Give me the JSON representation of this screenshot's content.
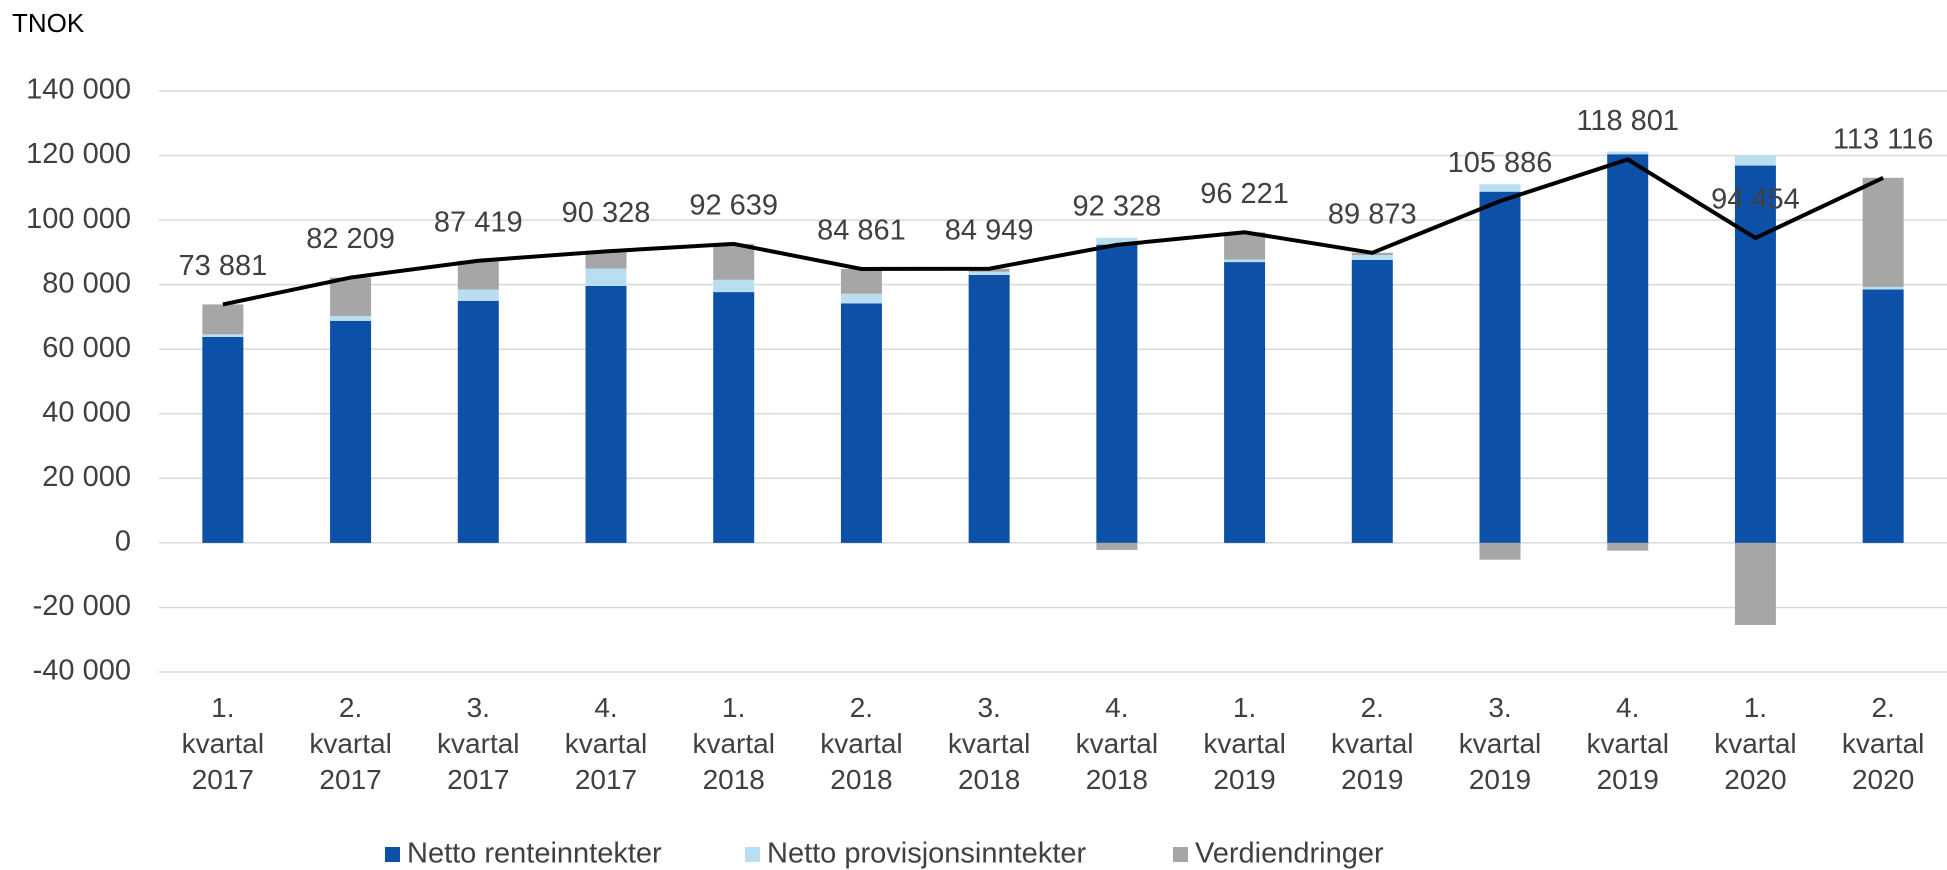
{
  "chart_data": {
    "type": "bar",
    "stacked": true,
    "y_unit_label": "TNOK",
    "categories": [
      "1. kvartal 2017",
      "2. kvartal 2017",
      "3. kvartal 2017",
      "4. kvartal 2017",
      "1. kvartal 2018",
      "2. kvartal 2018",
      "3. kvartal 2018",
      "4. kvartal 2018",
      "1. kvartal 2019",
      "2. kvartal 2019",
      "3. kvartal 2019",
      "4. kvartal 2019",
      "1. kvartal 2020",
      "2. kvartal 2020"
    ],
    "series": [
      {
        "name": "Netto renteinntekter",
        "color": "#0d50a8",
        "values": [
          63800,
          68800,
          75000,
          79600,
          77700,
          74200,
          83000,
          92400,
          87000,
          87700,
          108800,
          120400,
          116900,
          78500
        ]
      },
      {
        "name": "Netto provisjonsinntekter",
        "color": "#b9def2",
        "values": [
          800,
          1500,
          3500,
          5400,
          3800,
          3000,
          1000,
          2100,
          800,
          1500,
          2300,
          800,
          3000,
          800
        ]
      },
      {
        "name": "Verdiendringer",
        "color": "#a6a6a6",
        "values": [
          9281,
          11909,
          8919,
          5328,
          11139,
          7661,
          949,
          -2172,
          8421,
          673,
          -5214,
          -2399,
          -25446,
          33816
        ]
      }
    ],
    "line": {
      "color": "#000000",
      "values": [
        73881,
        82209,
        87419,
        90328,
        92639,
        84861,
        84949,
        92328,
        96221,
        89873,
        105886,
        118801,
        94454,
        113116
      ],
      "value_labels": [
        "73 881",
        "82 209",
        "87 419",
        "90 328",
        "92 639",
        "84 861",
        "84 949",
        "92 328",
        "96 221",
        "89 873",
        "105 886",
        "118 801",
        "94 454",
        "113 116"
      ]
    },
    "ylim": [
      -40000,
      140000
    ],
    "yticks": [
      {
        "value": -40000,
        "label": "-40 000"
      },
      {
        "value": -20000,
        "label": "-20 000"
      },
      0,
      {
        "value": 20000,
        "label": "20 000"
      },
      {
        "value": 40000,
        "label": "40 000"
      },
      {
        "value": 60000,
        "label": "60 000"
      },
      {
        "value": 80000,
        "label": "80 000"
      },
      {
        "value": 100000,
        "label": "100 000"
      },
      {
        "value": 120000,
        "label": "120 000"
      },
      {
        "value": 140000,
        "label": "140 000"
      }
    ],
    "grid": true,
    "legend": "bottom"
  }
}
